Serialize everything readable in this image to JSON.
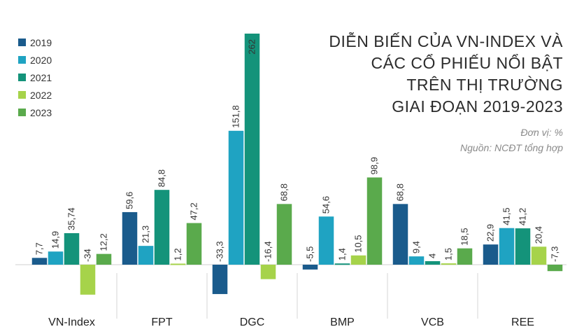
{
  "title_lines": [
    "DIỄN BIẾN CỦA VN-INDEX VÀ",
    "CÁC CỔ PHIẾU NỔI BẬT",
    "TRÊN THỊ TRƯỜNG",
    "GIAI ĐOẠN 2019-2023"
  ],
  "unit": "Đơn vị: %",
  "source": "Nguồn: NCĐT tổng hợp",
  "chart_data": {
    "type": "bar",
    "categories": [
      "VN-Index",
      "FPT",
      "DGC",
      "BMP",
      "VCB",
      "REE"
    ],
    "series": [
      {
        "name": "2019",
        "color": "#1a5b8c",
        "values": [
          7.7,
          59.6,
          -33.3,
          -5.5,
          68.8,
          22.9
        ],
        "labels": [
          "7,7",
          "59,6",
          "-33,3",
          "-5,5",
          "68,8",
          "22,9"
        ]
      },
      {
        "name": "2020",
        "color": "#1fa3c2",
        "values": [
          14.9,
          21.3,
          151.8,
          54.6,
          9.4,
          41.5
        ],
        "labels": [
          "14,9",
          "21,3",
          "151,8",
          "54,6",
          "9,4",
          "41,5"
        ]
      },
      {
        "name": "2021",
        "color": "#14937a",
        "values": [
          35.74,
          84.8,
          262,
          1.4,
          4,
          41.2
        ],
        "labels": [
          "35,74",
          "84,8",
          "262",
          "1,4",
          "4",
          "41,2"
        ]
      },
      {
        "name": "2022",
        "color": "#a6d34a",
        "values": [
          -34,
          1.2,
          -16.4,
          10.5,
          1.5,
          20.4
        ],
        "labels": [
          "-34",
          "1,2",
          "-16,4",
          "10,5",
          "1,5",
          "20,4"
        ]
      },
      {
        "name": "2023",
        "color": "#5aaa4c",
        "values": [
          12.2,
          47.2,
          68.8,
          98.9,
          18.5,
          -7.3
        ],
        "labels": [
          "12,2",
          "47,2",
          "68,8",
          "98,9",
          "18,5",
          "-7,3"
        ]
      }
    ],
    "ylim": [
      -40,
      262
    ],
    "legend_position": "top-left",
    "grid": false
  }
}
